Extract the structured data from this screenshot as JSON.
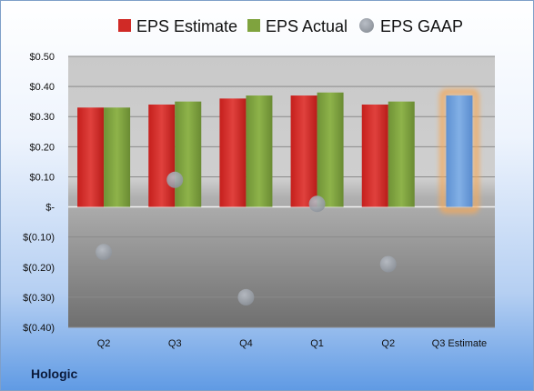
{
  "company": "Hologic",
  "colors": {
    "estimate": "#d02a26",
    "actual": "#7fa33e",
    "gaap": "#a3aab5",
    "projected": "#6e9fd8",
    "projected_glow": "#f4a95a"
  },
  "chart_data": {
    "type": "bar",
    "categories": [
      "Q2",
      "Q3",
      "Q4",
      "Q1",
      "Q2",
      "Q3 Estimate"
    ],
    "series": [
      {
        "name": "EPS Estimate",
        "values": [
          0.33,
          0.34,
          0.36,
          0.37,
          0.34,
          null
        ]
      },
      {
        "name": "EPS Actual",
        "values": [
          0.33,
          0.35,
          0.37,
          0.38,
          0.35,
          null
        ]
      },
      {
        "name": "EPS GAAP",
        "type": "scatter",
        "values": [
          -0.15,
          0.09,
          -0.3,
          0.01,
          -0.19,
          null
        ]
      }
    ],
    "projection": {
      "category": "Q3 Estimate",
      "value": 0.37
    },
    "ylim": [
      -0.4,
      0.5
    ],
    "yticks": [
      {
        "value": 0.5,
        "label": "$0.50"
      },
      {
        "value": 0.4,
        "label": "$0.40"
      },
      {
        "value": 0.3,
        "label": "$0.30"
      },
      {
        "value": 0.2,
        "label": "$0.20"
      },
      {
        "value": 0.1,
        "label": "$0.10"
      },
      {
        "value": 0.0,
        "label": "$-"
      },
      {
        "value": -0.1,
        "label": "$(0.10)"
      },
      {
        "value": -0.2,
        "label": "$(0.20)"
      },
      {
        "value": -0.3,
        "label": "$(0.30)"
      },
      {
        "value": -0.4,
        "label": "$(0.40)"
      }
    ],
    "grid": true,
    "legend_position": "top"
  }
}
